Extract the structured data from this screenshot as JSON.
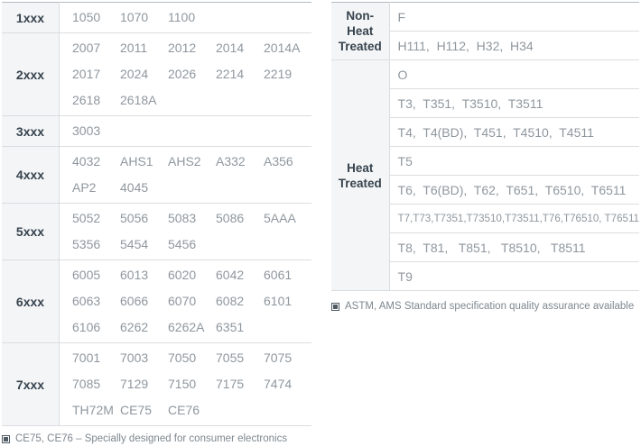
{
  "colors": {
    "header_bg": "#f4f5f6",
    "header_text": "#36434e",
    "data_text": "#8f979e",
    "row_border": "#dadde0",
    "top_border": "#b3bac0",
    "footnote_text": "#7e878e"
  },
  "left_table": {
    "rows": [
      {
        "series": "1xxx",
        "lines": [
          [
            "1050",
            "1070",
            "1100"
          ]
        ]
      },
      {
        "series": "2xxx",
        "lines": [
          [
            "2007",
            "2011",
            "2012",
            "2014",
            "2014A"
          ],
          [
            "2017",
            "2024",
            "2026",
            "2214",
            "2219"
          ],
          [
            "2618",
            "2618A"
          ]
        ]
      },
      {
        "series": "3xxx",
        "lines": [
          [
            "3003"
          ]
        ]
      },
      {
        "series": "4xxx",
        "lines": [
          [
            "4032",
            "AHS1",
            "AHS2",
            "A332",
            "A356"
          ],
          [
            "AP2",
            "4045"
          ]
        ]
      },
      {
        "series": "5xxx",
        "lines": [
          [
            "5052",
            "5056",
            "5083",
            "5086",
            "5AAA"
          ],
          [
            "5356",
            "5454",
            "5456"
          ]
        ]
      },
      {
        "series": "6xxx",
        "lines": [
          [
            "6005",
            "6013",
            "6020",
            "6042",
            "6061"
          ],
          [
            "6063",
            "6066",
            "6070",
            "6082",
            "6101"
          ],
          [
            "6106",
            "6262",
            "6262A",
            "6351"
          ]
        ]
      },
      {
        "series": "7xxx",
        "lines": [
          [
            "7001",
            "7003",
            "7050",
            "7055",
            "7075"
          ],
          [
            "7085",
            "7129",
            "7150",
            "7175",
            "7474"
          ],
          [
            "TH72M",
            "CE75",
            "CE76"
          ]
        ]
      }
    ],
    "footnote": "CE75, CE76 – Specially designed for consumer electronics"
  },
  "right_table": {
    "groups": [
      {
        "label": "Non-Heat Treated",
        "rows": [
          "F",
          "H111,  H112,  H32,  H34"
        ]
      },
      {
        "label": "Heat Treated",
        "rows": [
          "O",
          "T3,  T351,  T3510,  T3511",
          "T4,  T4(BD),  T451,  T4510,  T4511",
          "T5",
          "T6,  T6(BD),  T62,  T651,  T6510,  T6511",
          "T7,T73,T7351,T73510,T73511,T76,T76510, T76511",
          "T8,  T81,   T851,   T8510,   T8511",
          "T9"
        ]
      }
    ],
    "footnote": "ASTM, AMS Standard specification quality assurance available"
  }
}
